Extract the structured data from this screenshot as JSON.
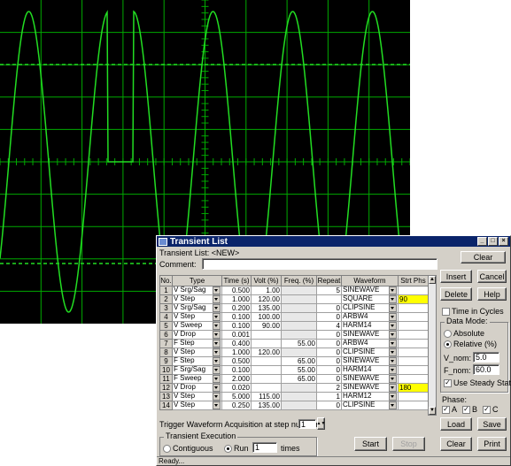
{
  "window": {
    "title": "Transient List"
  },
  "header": {
    "list_label": "Transient List:",
    "list_name": "<NEW>",
    "comment_label": "Comment:",
    "comment_value": ""
  },
  "columns": [
    "No.",
    "Type",
    "Time (s)",
    "Volt (%)",
    "Freq. (%)",
    "Repeat",
    "Waveform",
    "Strt Phs"
  ],
  "rows": [
    {
      "no": "1",
      "type": "V Srg/Sag",
      "time": "0.500",
      "volt": "1.00",
      "freq": "",
      "repeat": "5",
      "waveform": "SINEWAVE",
      "phase": "",
      "freq_grey": true,
      "phase_hl": false
    },
    {
      "no": "2",
      "type": "V Step",
      "time": "1.000",
      "volt": "120.00",
      "freq": "",
      "repeat": "",
      "waveform": "SQUARE",
      "phase": "90",
      "freq_grey": true,
      "phase_hl": true
    },
    {
      "no": "3",
      "type": "V Srg/Sag",
      "time": "0.200",
      "volt": "135.00",
      "freq": "",
      "repeat": "0",
      "waveform": "CLIPSINE",
      "phase": "",
      "freq_grey": true,
      "phase_hl": false
    },
    {
      "no": "4",
      "type": "V Step",
      "time": "0.100",
      "volt": "100.00",
      "freq": "",
      "repeat": "0",
      "waveform": "ARBW4",
      "phase": "",
      "freq_grey": true,
      "phase_hl": false
    },
    {
      "no": "5",
      "type": "V Sweep",
      "time": "0.100",
      "volt": "90.00",
      "freq": "",
      "repeat": "4",
      "waveform": "HARM14",
      "phase": "",
      "freq_grey": true,
      "phase_hl": false
    },
    {
      "no": "6",
      "type": "V Drop",
      "time": "0.001",
      "volt": "",
      "freq": "",
      "repeat": "0",
      "waveform": "SINEWAVE",
      "phase": "",
      "freq_grey": true,
      "phase_hl": false
    },
    {
      "no": "7",
      "type": "F Step",
      "time": "0.400",
      "volt": "",
      "freq": "55.00",
      "repeat": "0",
      "waveform": "ARBW4",
      "phase": "",
      "freq_grey": false,
      "phase_hl": false
    },
    {
      "no": "8",
      "type": "V Step",
      "time": "1.000",
      "volt": "120.00",
      "freq": "",
      "repeat": "0",
      "waveform": "CLIPSINE",
      "phase": "",
      "freq_grey": true,
      "phase_hl": false
    },
    {
      "no": "9",
      "type": "F Step",
      "time": "0.500",
      "volt": "",
      "freq": "65.00",
      "repeat": "0",
      "waveform": "SINEWAVE",
      "phase": "",
      "freq_grey": false,
      "phase_hl": false
    },
    {
      "no": "10",
      "type": "F Srg/Sag",
      "time": "0.100",
      "volt": "",
      "freq": "55.00",
      "repeat": "0",
      "waveform": "HARM14",
      "phase": "",
      "freq_grey": false,
      "phase_hl": false
    },
    {
      "no": "11",
      "type": "F Sweep",
      "time": "2.000",
      "volt": "",
      "freq": "65.00",
      "repeat": "0",
      "waveform": "SINEWAVE",
      "phase": "",
      "freq_grey": false,
      "phase_hl": false
    },
    {
      "no": "12",
      "type": "V Drop",
      "time": "0.020",
      "volt": "",
      "freq": "",
      "repeat": "2",
      "waveform": "SINEWAVE",
      "phase": "180",
      "freq_grey": true,
      "phase_hl": true
    },
    {
      "no": "13",
      "type": "V Step",
      "time": "5.000",
      "volt": "115.00",
      "freq": "",
      "repeat": "1",
      "waveform": "HARM12",
      "phase": "",
      "freq_grey": true,
      "phase_hl": false
    },
    {
      "no": "14",
      "type": "V Step",
      "time": "0.250",
      "volt": "135.00",
      "freq": "",
      "repeat": "0",
      "waveform": "CLIPSINE",
      "phase": "",
      "freq_grey": true,
      "phase_hl": false
    }
  ],
  "trigger": {
    "label": "Trigger Waveform Acquisition at step number :",
    "value": "1"
  },
  "execution": {
    "label": "Transient Execution",
    "contiguous": "Contiguous",
    "run": "Run",
    "run_count": "1",
    "times": "times"
  },
  "buttons": {
    "clear_top": "Clear",
    "insert": "Insert",
    "cancel": "Cancel",
    "delete": "Delete",
    "help": "Help",
    "load": "Load",
    "save": "Save",
    "start": "Start",
    "stop": "Stop",
    "clear": "Clear",
    "print": "Print"
  },
  "options": {
    "time_in_cycles": "Time in Cycles",
    "data_mode": "Data Mode:",
    "absolute": "Absolute",
    "relative": "Relative (%)",
    "v_nom_label": "V_nom:",
    "v_nom_value": "5.0",
    "f_nom_label": "F_nom:",
    "f_nom_value": "60.0",
    "use_steady_state": "Use Steady State",
    "phase_label": "Phase:",
    "phase_a": "A",
    "phase_b": "B",
    "phase_c": "C"
  },
  "status": "Ready...",
  "colors": {
    "trace": "#22dd22",
    "grid": "#00aa00",
    "title_bar": "#0a246a",
    "highlight": "#ffff00"
  }
}
